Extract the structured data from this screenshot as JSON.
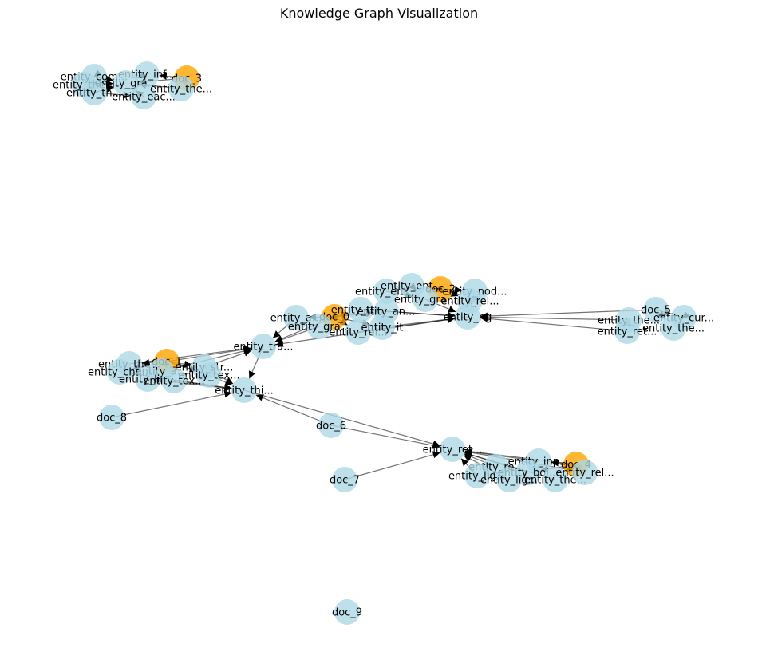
{
  "title": "Knowledge Graph Visualization",
  "colors": {
    "entity": "#add8e6",
    "document": "#ffa500",
    "edge": "#000000"
  },
  "nodes": [
    {
      "id": "doc_0",
      "label": "doc_0",
      "kind": "document"
    },
    {
      "id": "doc_1",
      "label": "doc_1",
      "kind": "document"
    },
    {
      "id": "doc_2",
      "label": "doc_2",
      "kind": "document"
    },
    {
      "id": "doc_3",
      "label": "doc_3",
      "kind": "document"
    },
    {
      "id": "doc_4",
      "label": "doc_4",
      "kind": "document"
    },
    {
      "id": "doc_5",
      "label": "doc_5",
      "kind": "entity"
    },
    {
      "id": "doc_6",
      "label": "doc_6",
      "kind": "entity"
    },
    {
      "id": "doc_7",
      "label": "doc_7",
      "kind": "entity"
    },
    {
      "id": "doc_8",
      "label": "doc_8",
      "kind": "entity"
    },
    {
      "id": "doc_9",
      "label": "doc_9",
      "kind": "entity"
    },
    {
      "id": "c3_com",
      "label": "entity_com...",
      "kind": "entity"
    },
    {
      "id": "c3_inf",
      "label": "entity_inf...",
      "kind": "entity"
    },
    {
      "id": "c3_the",
      "label": "entity_the...",
      "kind": "entity"
    },
    {
      "id": "c3_gra",
      "label": "entity_gra...",
      "kind": "entity"
    },
    {
      "id": "c3_th2",
      "label": "entity_th...",
      "kind": "entity"
    },
    {
      "id": "c3_eac",
      "label": "entity_eac...",
      "kind": "entity"
    },
    {
      "id": "c3_the2",
      "label": "entity_the...",
      "kind": "entity"
    },
    {
      "id": "c0_ent",
      "label": "entity_ent...",
      "kind": "entity"
    },
    {
      "id": "c0_ent2",
      "label": "entity_ent...",
      "kind": "entity"
    },
    {
      "id": "c0_gra",
      "label": "entity_gra...",
      "kind": "entity"
    },
    {
      "id": "c0_nod",
      "label": "entity_nod...",
      "kind": "entity"
    },
    {
      "id": "c0_rel",
      "label": "entity_rel...",
      "kind": "entity"
    },
    {
      "id": "c0_ttx",
      "label": "entity_ttx...",
      "kind": "entity"
    },
    {
      "id": "c0_an",
      "label": "entity_an...",
      "kind": "entity"
    },
    {
      "id": "c0_a",
      "label": "entity_a...",
      "kind": "entity"
    },
    {
      "id": "c0_gra2",
      "label": "entity_gra...",
      "kind": "entity"
    },
    {
      "id": "c0_rel2",
      "label": "entity_rel...",
      "kind": "entity"
    },
    {
      "id": "c0_it",
      "label": "entity_it",
      "kind": "entity"
    },
    {
      "id": "c0_ng",
      "label": "entity_ng",
      "kind": "entity"
    },
    {
      "id": "c5_the",
      "label": "entity_the...",
      "kind": "entity"
    },
    {
      "id": "c5_cur",
      "label": "entity_cur...",
      "kind": "entity"
    },
    {
      "id": "c5_ret",
      "label": "entity_ret...",
      "kind": "entity"
    },
    {
      "id": "c5_the2",
      "label": "entity_the...",
      "kind": "entity"
    },
    {
      "id": "c1_tra",
      "label": "entity_tra...",
      "kind": "entity"
    },
    {
      "id": "c1_the",
      "label": "entity_the...",
      "kind": "entity"
    },
    {
      "id": "c1_str",
      "label": "entity_str...",
      "kind": "entity"
    },
    {
      "id": "c1_cha",
      "label": "entity_cha...",
      "kind": "entity"
    },
    {
      "id": "c1_a",
      "label": "entity_a...",
      "kind": "entity"
    },
    {
      "id": "c1_tex",
      "label": "entity_tex...",
      "kind": "entity"
    },
    {
      "id": "c1_lin",
      "label": "entity_lin...",
      "kind": "entity"
    },
    {
      "id": "c1_tex2",
      "label": "entity_tex...",
      "kind": "entity"
    },
    {
      "id": "c1_thi",
      "label": "entity_thi...",
      "kind": "entity"
    },
    {
      "id": "c4_ret",
      "label": "entity_ret...",
      "kind": "entity"
    },
    {
      "id": "c4_inp",
      "label": "entity_inp...",
      "kind": "entity"
    },
    {
      "id": "c4_re",
      "label": "entity_re...",
      "kind": "entity"
    },
    {
      "id": "c4_boi",
      "label": "entity_boi...",
      "kind": "entity"
    },
    {
      "id": "c4_lig",
      "label": "entity_lig...",
      "kind": "entity"
    },
    {
      "id": "c4_lig2",
      "label": "entity_lig...",
      "kind": "entity"
    },
    {
      "id": "c4_the",
      "label": "entity_the...",
      "kind": "entity"
    },
    {
      "id": "c4_rel",
      "label": "entity_rel...",
      "kind": "entity"
    }
  ],
  "edges": [
    [
      "c3_com",
      "c3_gra"
    ],
    [
      "c3_the",
      "c3_gra"
    ],
    [
      "c3_th2",
      "c3_gra"
    ],
    [
      "c3_inf",
      "c3_gra"
    ],
    [
      "c3_eac",
      "c3_gra"
    ],
    [
      "doc_3",
      "c3_gra"
    ],
    [
      "doc_3",
      "c3_the2"
    ],
    [
      "doc_3",
      "c3_inf"
    ],
    [
      "c3_the2",
      "c3_gra"
    ],
    [
      "c3_com",
      "c3_the"
    ],
    [
      "c3_th2",
      "c3_eac"
    ],
    [
      "c0_ent",
      "c0_gra"
    ],
    [
      "c0_ent2",
      "c0_gra"
    ],
    [
      "doc_2",
      "c0_gra"
    ],
    [
      "doc_2",
      "c0_nod"
    ],
    [
      "doc_2",
      "c0_rel"
    ],
    [
      "c0_nod",
      "c0_ng"
    ],
    [
      "c0_rel",
      "c0_ng"
    ],
    [
      "c0_gra",
      "c0_ng"
    ],
    [
      "c0_ttx",
      "c0_ng"
    ],
    [
      "c0_an",
      "c0_ng"
    ],
    [
      "doc_0",
      "c0_a"
    ],
    [
      "doc_0",
      "c0_gra2"
    ],
    [
      "doc_0",
      "c0_ttx"
    ],
    [
      "doc_0",
      "c0_an"
    ],
    [
      "doc_0",
      "c0_rel2"
    ],
    [
      "doc_0",
      "c0_it"
    ],
    [
      "c0_it",
      "c0_ng"
    ],
    [
      "c0_rel2",
      "c0_ng"
    ],
    [
      "c0_a",
      "c1_tra"
    ],
    [
      "c0_gra2",
      "c1_tra"
    ],
    [
      "doc_0",
      "c1_tra"
    ],
    [
      "c0_ng",
      "c1_tra"
    ],
    [
      "doc_5",
      "c0_ng"
    ],
    [
      "c5_the",
      "c0_ng"
    ],
    [
      "c5_ret",
      "c0_ng"
    ],
    [
      "doc_5",
      "c5_cur"
    ],
    [
      "doc_5",
      "c5_the2"
    ],
    [
      "c5_cur",
      "c5_the2"
    ],
    [
      "c5_the",
      "c5_ret"
    ],
    [
      "doc_1",
      "c1_the"
    ],
    [
      "doc_1",
      "c1_str"
    ],
    [
      "doc_1",
      "c1_cha"
    ],
    [
      "doc_1",
      "c1_a"
    ],
    [
      "doc_1",
      "c1_tex"
    ],
    [
      "doc_1",
      "c1_tra"
    ],
    [
      "c1_the",
      "c1_tra"
    ],
    [
      "c1_str",
      "c1_tra"
    ],
    [
      "c1_a",
      "c1_tra"
    ],
    [
      "c1_tex",
      "c1_thi"
    ],
    [
      "c1_lin",
      "c1_thi"
    ],
    [
      "c1_tex2",
      "c1_thi"
    ],
    [
      "c1_str",
      "c1_thi"
    ],
    [
      "c1_cha",
      "c1_thi"
    ],
    [
      "c1_tra",
      "c1_thi"
    ],
    [
      "doc_8",
      "c1_thi"
    ],
    [
      "doc_6",
      "c1_thi"
    ],
    [
      "c1_thi",
      "c4_ret"
    ],
    [
      "doc_6",
      "c4_ret"
    ],
    [
      "doc_7",
      "c4_ret"
    ],
    [
      "doc_4",
      "c4_ret"
    ],
    [
      "doc_4",
      "c4_inp"
    ],
    [
      "doc_4",
      "c4_rel"
    ],
    [
      "doc_4",
      "c4_boi"
    ],
    [
      "doc_4",
      "c4_the"
    ],
    [
      "c4_inp",
      "c4_ret"
    ],
    [
      "c4_re",
      "c4_ret"
    ],
    [
      "c4_boi",
      "c4_ret"
    ],
    [
      "c4_lig",
      "c4_ret"
    ],
    [
      "c4_lig2",
      "c4_ret"
    ],
    [
      "c4_the",
      "c4_ret"
    ],
    [
      "c4_rel",
      "c4_ret"
    ]
  ]
}
